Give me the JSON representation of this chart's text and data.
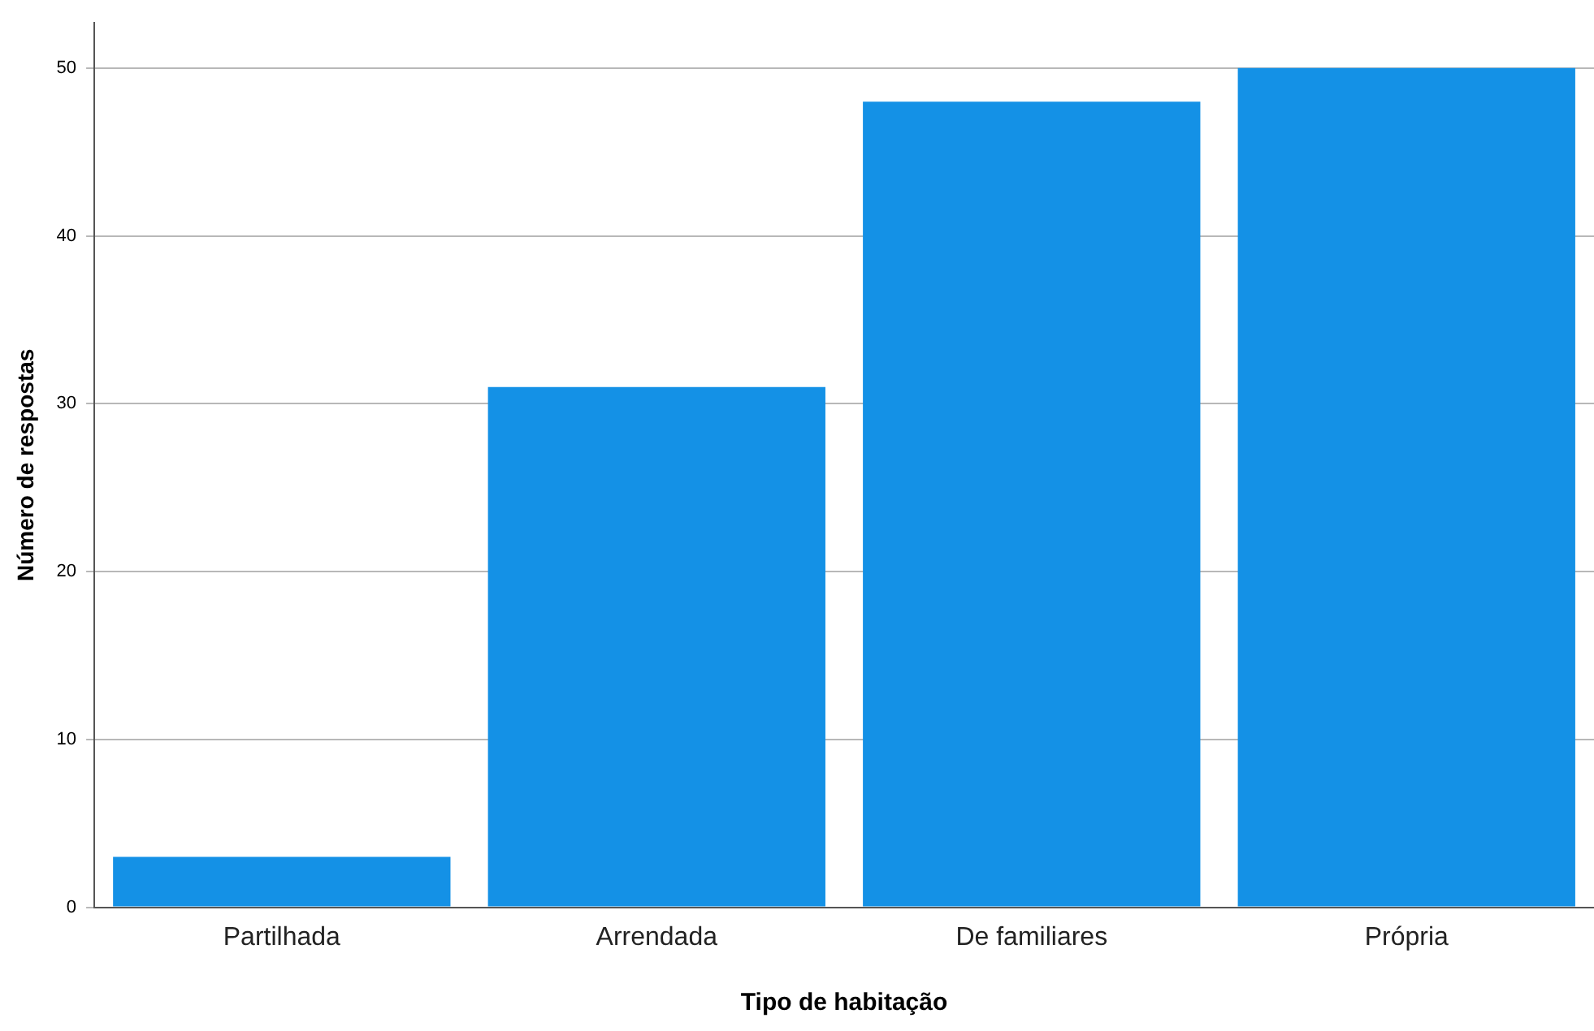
{
  "chart_data": {
    "type": "bar",
    "xlabel": "Tipo de habitação",
    "ylabel": "Número de respostas",
    "categories": [
      "Partilhada",
      "Arrendada",
      "De familiares",
      "Própria"
    ],
    "values": [
      3,
      31,
      48,
      50
    ],
    "color": "#1491e6",
    "ylim": [
      0,
      52.7
    ],
    "yticks": [
      0,
      10,
      20,
      30,
      40,
      50
    ],
    "grid": "y",
    "legend": false
  }
}
